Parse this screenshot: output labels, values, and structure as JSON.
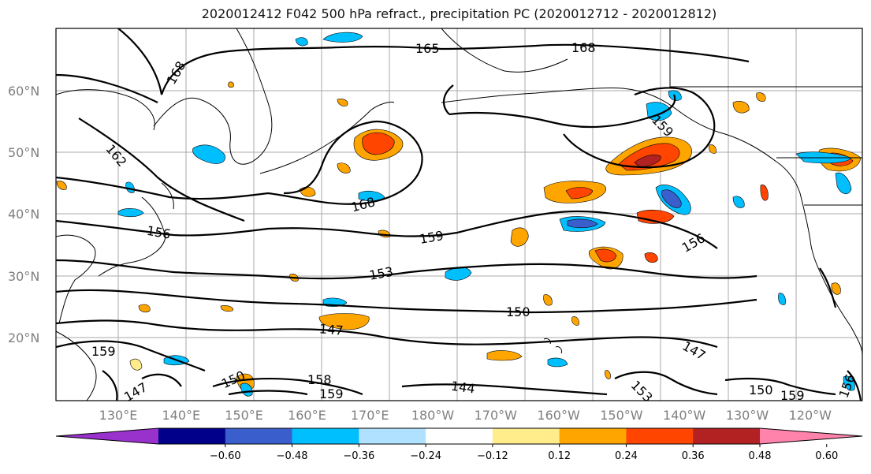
{
  "title": "2020012412 F042 500 hPa refract., precipitation PC (2020012712 - 2020012812)",
  "lat_labels": [
    "60°N",
    "50°N",
    "40°N",
    "30°N",
    "20°N"
  ],
  "lon_labels": [
    "130°E",
    "140°E",
    "150°E",
    "160°E",
    "170°E",
    "180°W",
    "170°W",
    "160°W",
    "150°W",
    "140°W",
    "130°W",
    "120°W"
  ],
  "contour_labels": [
    "165",
    "168",
    "168",
    "159",
    "162",
    "168",
    "156",
    "159",
    "156",
    "153",
    "150",
    "147",
    "147",
    "144",
    "159",
    "147",
    "150",
    "159",
    "158",
    "153",
    "150",
    "159",
    "156"
  ],
  "colorbar": {
    "ticks": [
      "−0.60",
      "−0.48",
      "−0.36",
      "−0.24",
      "−0.12",
      "0.12",
      "0.24",
      "0.36",
      "0.48",
      "0.60"
    ],
    "colors": [
      "#9932cc",
      "#00008b",
      "#3a5fcd",
      "#00bfff",
      "#b0e2ff",
      "#ffffff",
      "#ffec8b",
      "#ffa500",
      "#ff4500",
      "#b22222",
      "#ff83ab"
    ]
  },
  "colors": {
    "grid": "#aaaaaa",
    "coast": "#000000",
    "contour": "#000000"
  }
}
